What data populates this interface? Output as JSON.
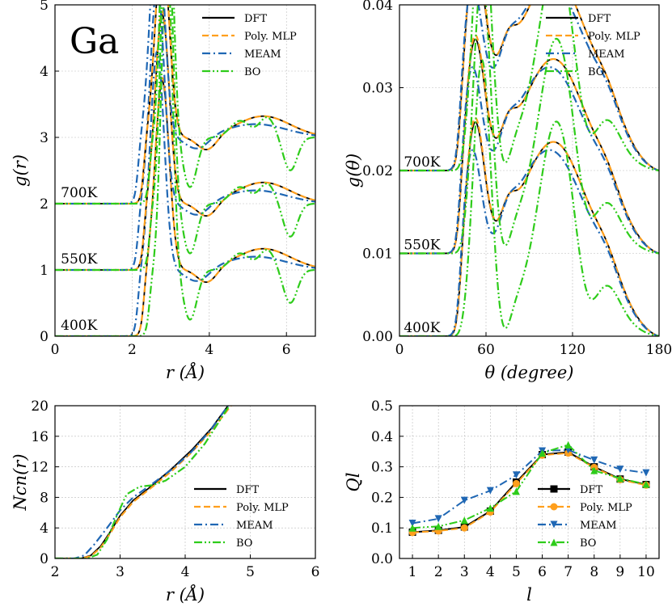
{
  "colors": {
    "DFT": "#000000",
    "Poly. MLP": "#ff9f1c",
    "MEAM": "#1f67b4",
    "BO": "#2ecc1a"
  },
  "chart_data": [
    {
      "id": "gr",
      "type": "line",
      "xlabel": "r (Å)",
      "ylabel": "g(r)",
      "xlim": [
        0,
        6.75
      ],
      "ylim": [
        0,
        5
      ],
      "xticks": [
        0,
        2,
        4,
        6
      ],
      "yticks": [
        0,
        1,
        2,
        3,
        4,
        5
      ],
      "grid": true,
      "legend": "top-right",
      "big_label": "Ga",
      "annotations": [
        {
          "text": "700K",
          "x": 0.15,
          "y": 2.1
        },
        {
          "text": "550K",
          "x": 0.15,
          "y": 1.1
        },
        {
          "text": "400K",
          "x": 0.15,
          "y": 0.1
        }
      ],
      "offsets": [
        0,
        1,
        2
      ],
      "series": [
        {
          "name": "DFT",
          "style": "solid",
          "peaks": [
            [
              2.78,
              2.85,
              0.18
            ],
            [
              3.95,
              -0.22,
              0.25
            ],
            [
              5.4,
              0.32,
              0.7
            ]
          ],
          "onset": 2.3
        },
        {
          "name": "Poly. MLP",
          "style": "dashed",
          "peaks": [
            [
              2.78,
              2.9,
              0.18
            ],
            [
              3.95,
              -0.22,
              0.25
            ],
            [
              5.4,
              0.32,
              0.7
            ]
          ],
          "onset": 2.3
        },
        {
          "name": "MEAM",
          "style": "dashdot",
          "peaks": [
            [
              2.65,
              3.3,
              0.18
            ],
            [
              3.7,
              -0.2,
              0.3
            ],
            [
              5.2,
              0.2,
              0.8
            ]
          ],
          "onset": 2.15
        },
        {
          "name": "BO",
          "style": "dashdotdot",
          "peaks": [
            [
              2.9,
              4.8,
              0.14
            ],
            [
              3.5,
              -0.75,
              0.18
            ],
            [
              4.8,
              0.25,
              0.25
            ],
            [
              5.5,
              0.3,
              0.2
            ],
            [
              6.1,
              -0.5,
              0.18
            ]
          ],
          "onset": 2.45
        }
      ]
    },
    {
      "id": "gtheta",
      "type": "line",
      "xlabel": "θ (degree)",
      "ylabel": "g(θ)",
      "xlim": [
        0,
        180
      ],
      "ylim": [
        0,
        0.04
      ],
      "xticks": [
        0,
        60,
        120,
        180
      ],
      "yticks": [
        "0.00",
        "0.01",
        "0.02",
        "0.03",
        "0.04"
      ],
      "grid": true,
      "legend": "top-right",
      "annotations": [
        {
          "text": "700K",
          "x": 3,
          "y": 0.0205
        },
        {
          "text": "550K",
          "x": 3,
          "y": 0.0105
        },
        {
          "text": "400K",
          "x": 3,
          "y": 0.0005
        }
      ],
      "offsets": [
        0,
        0.01,
        0.02
      ],
      "series": [
        {
          "name": "DFT",
          "style": "solid"
        },
        {
          "name": "Poly. MLP",
          "style": "dashed"
        },
        {
          "name": "MEAM",
          "style": "dashdot"
        },
        {
          "name": "BO",
          "style": "dashdotdot"
        }
      ]
    },
    {
      "id": "ncn",
      "type": "line",
      "xlabel": "r (Å)",
      "ylabel": "Ncn(r)",
      "xlim": [
        2,
        6
      ],
      "ylim": [
        0,
        20
      ],
      "xticks": [
        2,
        3,
        4,
        5,
        6
      ],
      "yticks": [
        0,
        4,
        8,
        12,
        16,
        20
      ],
      "grid": true,
      "legend": "bottom-right",
      "series": [
        {
          "name": "DFT",
          "style": "solid",
          "x": [
            2.0,
            2.4,
            2.55,
            2.7,
            2.85,
            3.0,
            3.2,
            3.5,
            3.8,
            4.1,
            4.4,
            4.7
          ],
          "y": [
            0,
            0,
            0.4,
            1.6,
            3.5,
            5.6,
            7.6,
            9.6,
            11.8,
            14.2,
            17.0,
            20.5
          ]
        },
        {
          "name": "Poly. MLP",
          "style": "dashed",
          "x": [
            2.0,
            2.4,
            2.55,
            2.7,
            2.85,
            3.0,
            3.2,
            3.5,
            3.8,
            4.1,
            4.4,
            4.75
          ],
          "y": [
            0,
            0,
            0.3,
            1.4,
            3.3,
            5.4,
            7.4,
            9.4,
            11.5,
            13.9,
            16.7,
            20.5
          ]
        },
        {
          "name": "MEAM",
          "style": "dashdot",
          "x": [
            2.0,
            2.3,
            2.45,
            2.6,
            2.8,
            3.0,
            3.2,
            3.5,
            3.8,
            4.1,
            4.4,
            4.7
          ],
          "y": [
            0,
            0,
            0.4,
            1.8,
            4.0,
            6.3,
            8.0,
            9.8,
            11.7,
            14.0,
            16.9,
            20.5
          ]
        },
        {
          "name": "BO",
          "style": "dashdotdot",
          "x": [
            2.0,
            2.5,
            2.65,
            2.8,
            2.95,
            3.1,
            3.3,
            3.5,
            3.7,
            4.0,
            4.3,
            4.7
          ],
          "y": [
            0,
            0,
            0.5,
            2.5,
            5.6,
            8.4,
            9.4,
            9.6,
            10.2,
            12.0,
            15.0,
            20.3
          ]
        }
      ]
    },
    {
      "id": "ql",
      "type": "line",
      "xlabel": "l",
      "ylabel": "Ql",
      "xlim": [
        0.5,
        10.5
      ],
      "ylim": [
        0,
        0.5
      ],
      "xticks": [
        1,
        2,
        3,
        4,
        5,
        6,
        7,
        8,
        9,
        10
      ],
      "yticks": [
        "0.0",
        "0.1",
        "0.2",
        "0.3",
        "0.4",
        "0.5"
      ],
      "grid": true,
      "legend": "bottom-right",
      "x": [
        1,
        2,
        3,
        4,
        5,
        6,
        7,
        8,
        9,
        10
      ],
      "series": [
        {
          "name": "DFT",
          "style": "solid",
          "marker": "square",
          "values": [
            0.086,
            0.092,
            0.103,
            0.155,
            0.25,
            0.34,
            0.348,
            0.3,
            0.26,
            0.242
          ]
        },
        {
          "name": "Poly. MLP",
          "style": "dashed",
          "marker": "circle",
          "values": [
            0.085,
            0.09,
            0.1,
            0.152,
            0.245,
            0.338,
            0.345,
            0.298,
            0.258,
            0.24
          ]
        },
        {
          "name": "MEAM",
          "style": "dashdot",
          "marker": "triangle-down",
          "values": [
            0.115,
            0.13,
            0.19,
            0.222,
            0.273,
            0.352,
            0.355,
            0.322,
            0.292,
            0.28
          ]
        },
        {
          "name": "BO",
          "style": "dashdotdot",
          "marker": "triangle-up",
          "values": [
            0.1,
            0.105,
            0.125,
            0.165,
            0.22,
            0.345,
            0.372,
            0.288,
            0.262,
            0.243
          ]
        }
      ]
    }
  ]
}
